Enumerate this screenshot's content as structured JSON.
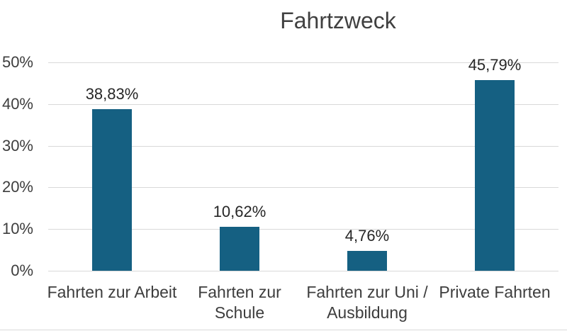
{
  "chart_data": {
    "type": "bar",
    "title": "Fahrtzweck",
    "categories": [
      "Fahrten zur Arbeit",
      "Fahrten zur Schule",
      "Fahrten zur Uni / Ausbildung",
      "Private Fahrten"
    ],
    "category_label_lines": [
      [
        "Fahrten zur Arbeit"
      ],
      [
        "Fahrten zur",
        "Schule"
      ],
      [
        "Fahrten zur Uni /",
        "Ausbildung"
      ],
      [
        "Private Fahrten"
      ]
    ],
    "values": [
      38.83,
      10.62,
      4.76,
      45.79
    ],
    "data_labels": [
      "38,83%",
      "10,62%",
      "4,76%",
      "45,79%"
    ],
    "y_tick_labels": [
      "0%",
      "10%",
      "20%",
      "30%",
      "40%",
      "50%"
    ],
    "y_tick_values": [
      0,
      10,
      20,
      30,
      40,
      50
    ],
    "ylim": [
      0,
      50
    ],
    "xlabel": "",
    "ylabel": "",
    "grid": true,
    "legend_position": "none",
    "decimal_separator": ",",
    "colors": {
      "bar_fill": "#156082",
      "gridline": "#D9D9D9",
      "axis_line": "#D9D9D9",
      "title_text": "#404040",
      "value_label_text": "#262626",
      "axis_label_text": "#3D3D3D",
      "background": "#FFFFFF"
    }
  }
}
